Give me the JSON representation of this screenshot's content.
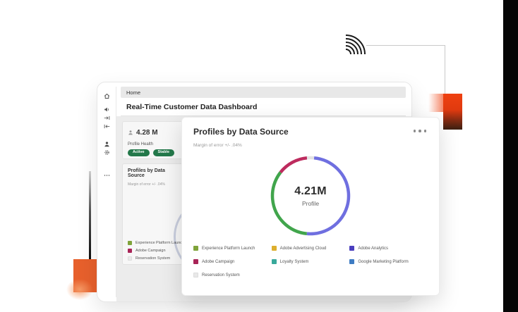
{
  "page": {
    "right_strip_color": "#060606"
  },
  "decor": {
    "signal_icon": "signal-arcs",
    "line_color": "#c9c9c9",
    "orange_accent": "#ee3c0e",
    "orange_block": "#e7602c"
  },
  "window": {
    "breadcrumb": "Home",
    "title": "Real-Time Customer Data Dashboard",
    "sidebar_icons": [
      "home",
      "announcement",
      "data-in",
      "data-out",
      "user",
      "settings",
      "more"
    ]
  },
  "profile_card": {
    "value": "4.28 M",
    "label": "Profile Health",
    "badges": [
      "Active",
      "Stable"
    ]
  },
  "source_card": {
    "title": "Profiles by Data Source",
    "margin_note": "Margin of error +/- .04%",
    "legend": [
      {
        "label": "Experience Platform Launch",
        "color": "#7fa33a"
      },
      {
        "label": "Adobe Campaign",
        "color": "#a82457"
      },
      {
        "label": "Reservation System",
        "color": "#e9e9e9"
      }
    ],
    "partial_squares": [
      "#ddaf2e",
      "#38a99b"
    ]
  },
  "overlay": {
    "title": "Profiles by Data Source",
    "more_icon": "ellipsis",
    "margin_note": "Margin of error +/- .04%",
    "center_value": "4.21M",
    "center_label": "Profile",
    "legend": [
      {
        "label": "Experience Platform Launch",
        "color": "#7fa33a"
      },
      {
        "label": "Adobe Advertising Cloud",
        "color": "#ddaf2e"
      },
      {
        "label": "Adobe Analytics",
        "color": "#4b3fbe"
      },
      {
        "label": "Adobe Campaign",
        "color": "#a82457"
      },
      {
        "label": "Loyalty System",
        "color": "#38a99b"
      },
      {
        "label": "Google Marketing Platform",
        "color": "#3e7cc3"
      },
      {
        "label": "Reservation System",
        "color": "#e9e9e9"
      }
    ]
  },
  "chart_data": {
    "type": "pie",
    "title": "Profiles by Data Source",
    "center_total": "4.21M",
    "center_label": "Profile",
    "note": "Margin of error +/- .04%",
    "legend_position": "bottom",
    "segments": [
      {
        "name": "Reservation System",
        "color": "#e3e3e3",
        "pct": 3
      },
      {
        "name": "Adobe Analytics",
        "color": "#6f6fe0",
        "pct": 50
      },
      {
        "name": "Experience Platform Launch",
        "color": "#41a54c",
        "pct": 34
      },
      {
        "name": "Adobe Campaign",
        "color": "#bd2b5e",
        "pct": 13
      }
    ]
  }
}
